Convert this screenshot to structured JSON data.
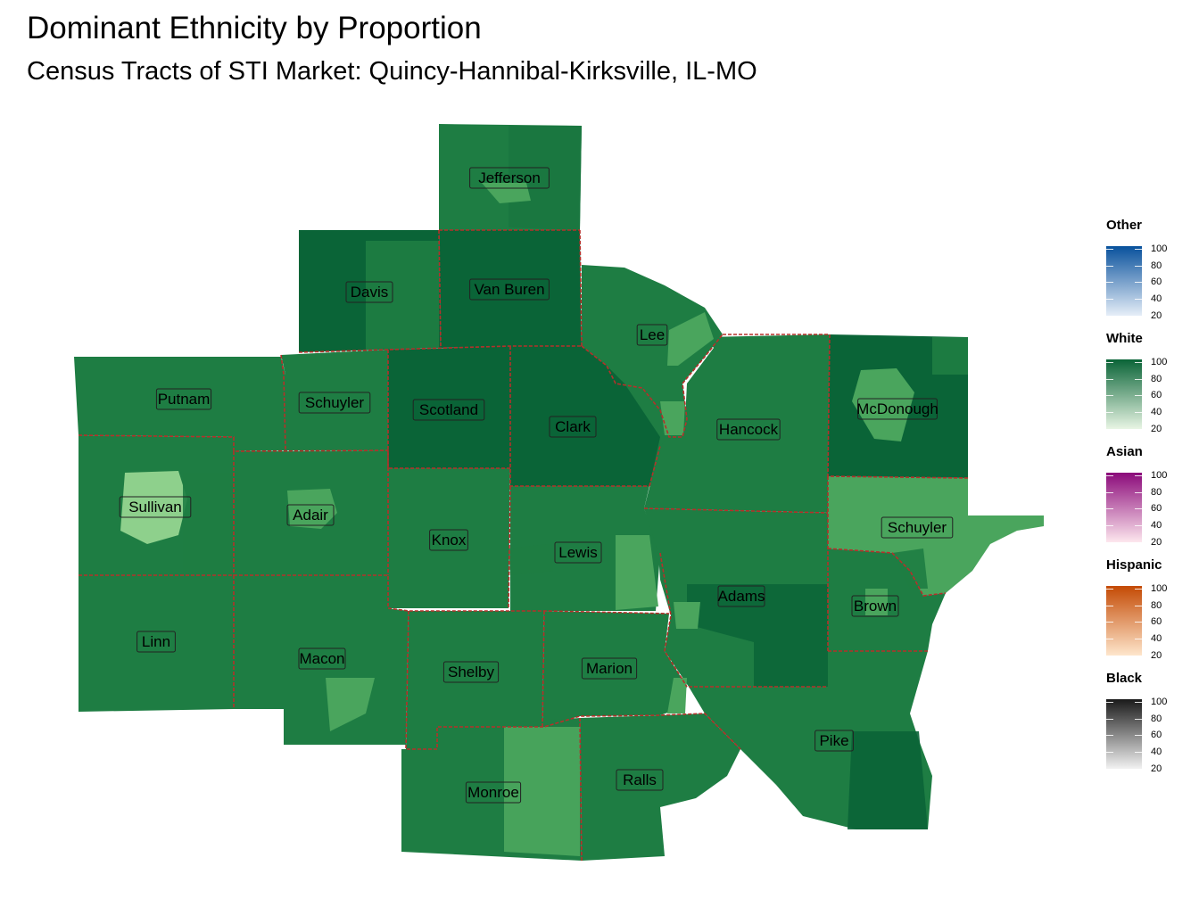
{
  "title": "Dominant Ethnicity by Proportion",
  "subtitle": "Census Tracts of STI Market: Quincy-Hannibal-Kirksville, IL-MO",
  "colors": {
    "white_dark": "#0a6437",
    "white_mid": "#1e7d43",
    "white_light": "#4aa55d",
    "white_pale": "#8ed08c",
    "border": "#b5302a"
  },
  "counties": [
    {
      "name": "Jefferson"
    },
    {
      "name": "Davis"
    },
    {
      "name": "Van Buren"
    },
    {
      "name": "Lee"
    },
    {
      "name": "Putnam"
    },
    {
      "name": "Schuyler"
    },
    {
      "name": "Scotland"
    },
    {
      "name": "Clark"
    },
    {
      "name": "Hancock"
    },
    {
      "name": "McDonough"
    },
    {
      "name": "Sullivan"
    },
    {
      "name": "Adair"
    },
    {
      "name": "Knox"
    },
    {
      "name": "Lewis"
    },
    {
      "name": "Schuyler"
    },
    {
      "name": "Adams"
    },
    {
      "name": "Brown"
    },
    {
      "name": "Linn"
    },
    {
      "name": "Macon"
    },
    {
      "name": "Shelby"
    },
    {
      "name": "Marion"
    },
    {
      "name": "Pike"
    },
    {
      "name": "Monroe"
    },
    {
      "name": "Ralls"
    }
  ],
  "legend": [
    {
      "title": "Other",
      "ticks": [
        "100",
        "80",
        "60",
        "40",
        "20"
      ],
      "color_low": "#e6eef8",
      "color_high": "#08519c"
    },
    {
      "title": "White",
      "ticks": [
        "100",
        "80",
        "60",
        "40",
        "20"
      ],
      "color_low": "#e8f5e4",
      "color_high": "#0a6437"
    },
    {
      "title": "Asian",
      "ticks": [
        "100",
        "80",
        "60",
        "40",
        "20"
      ],
      "color_low": "#fde7ee",
      "color_high": "#8b0a7a"
    },
    {
      "title": "Hispanic",
      "ticks": [
        "100",
        "80",
        "60",
        "40",
        "20"
      ],
      "color_low": "#fee6cc",
      "color_high": "#c44a04"
    },
    {
      "title": "Black",
      "ticks": [
        "100",
        "80",
        "60",
        "40",
        "20"
      ],
      "color_low": "#f2f2f2",
      "color_high": "#1a1a1a"
    }
  ]
}
